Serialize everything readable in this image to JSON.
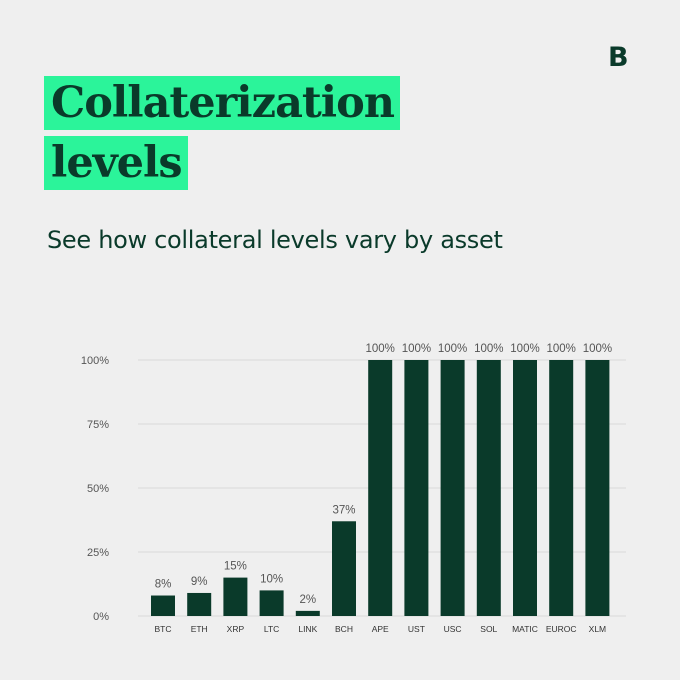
{
  "brand": {
    "logo_text": "B"
  },
  "header": {
    "title_line1": "Collaterization",
    "title_line2": "levels",
    "subtitle": "See how collateral levels vary by asset"
  },
  "colors": {
    "background": "#efefef",
    "highlight": "#2bf49a",
    "bar": "#0a3a2a",
    "text": "#0a3a2a",
    "grid": "#d9d9d9",
    "axis_text": "#555555"
  },
  "chart_data": {
    "type": "bar",
    "categories": [
      "BTC",
      "ETH",
      "XRP",
      "LTC",
      "LINK",
      "BCH",
      "APE",
      "UST",
      "USC",
      "SOL",
      "MATIC",
      "EUROC",
      "XLM"
    ],
    "values": [
      8,
      9,
      15,
      10,
      2,
      37,
      100,
      100,
      100,
      100,
      100,
      100,
      100
    ],
    "data_labels": [
      "8%",
      "9%",
      "15%",
      "10%",
      "2%",
      "37%",
      "100%",
      "100%",
      "100%",
      "100%",
      "100%",
      "100%",
      "100%"
    ],
    "y_ticks": [
      0,
      25,
      50,
      75,
      100
    ],
    "y_tick_labels": [
      "0%",
      "25%",
      "50%",
      "75%",
      "100%"
    ],
    "ylim": [
      0,
      100
    ],
    "grid": true,
    "legend": "none"
  }
}
